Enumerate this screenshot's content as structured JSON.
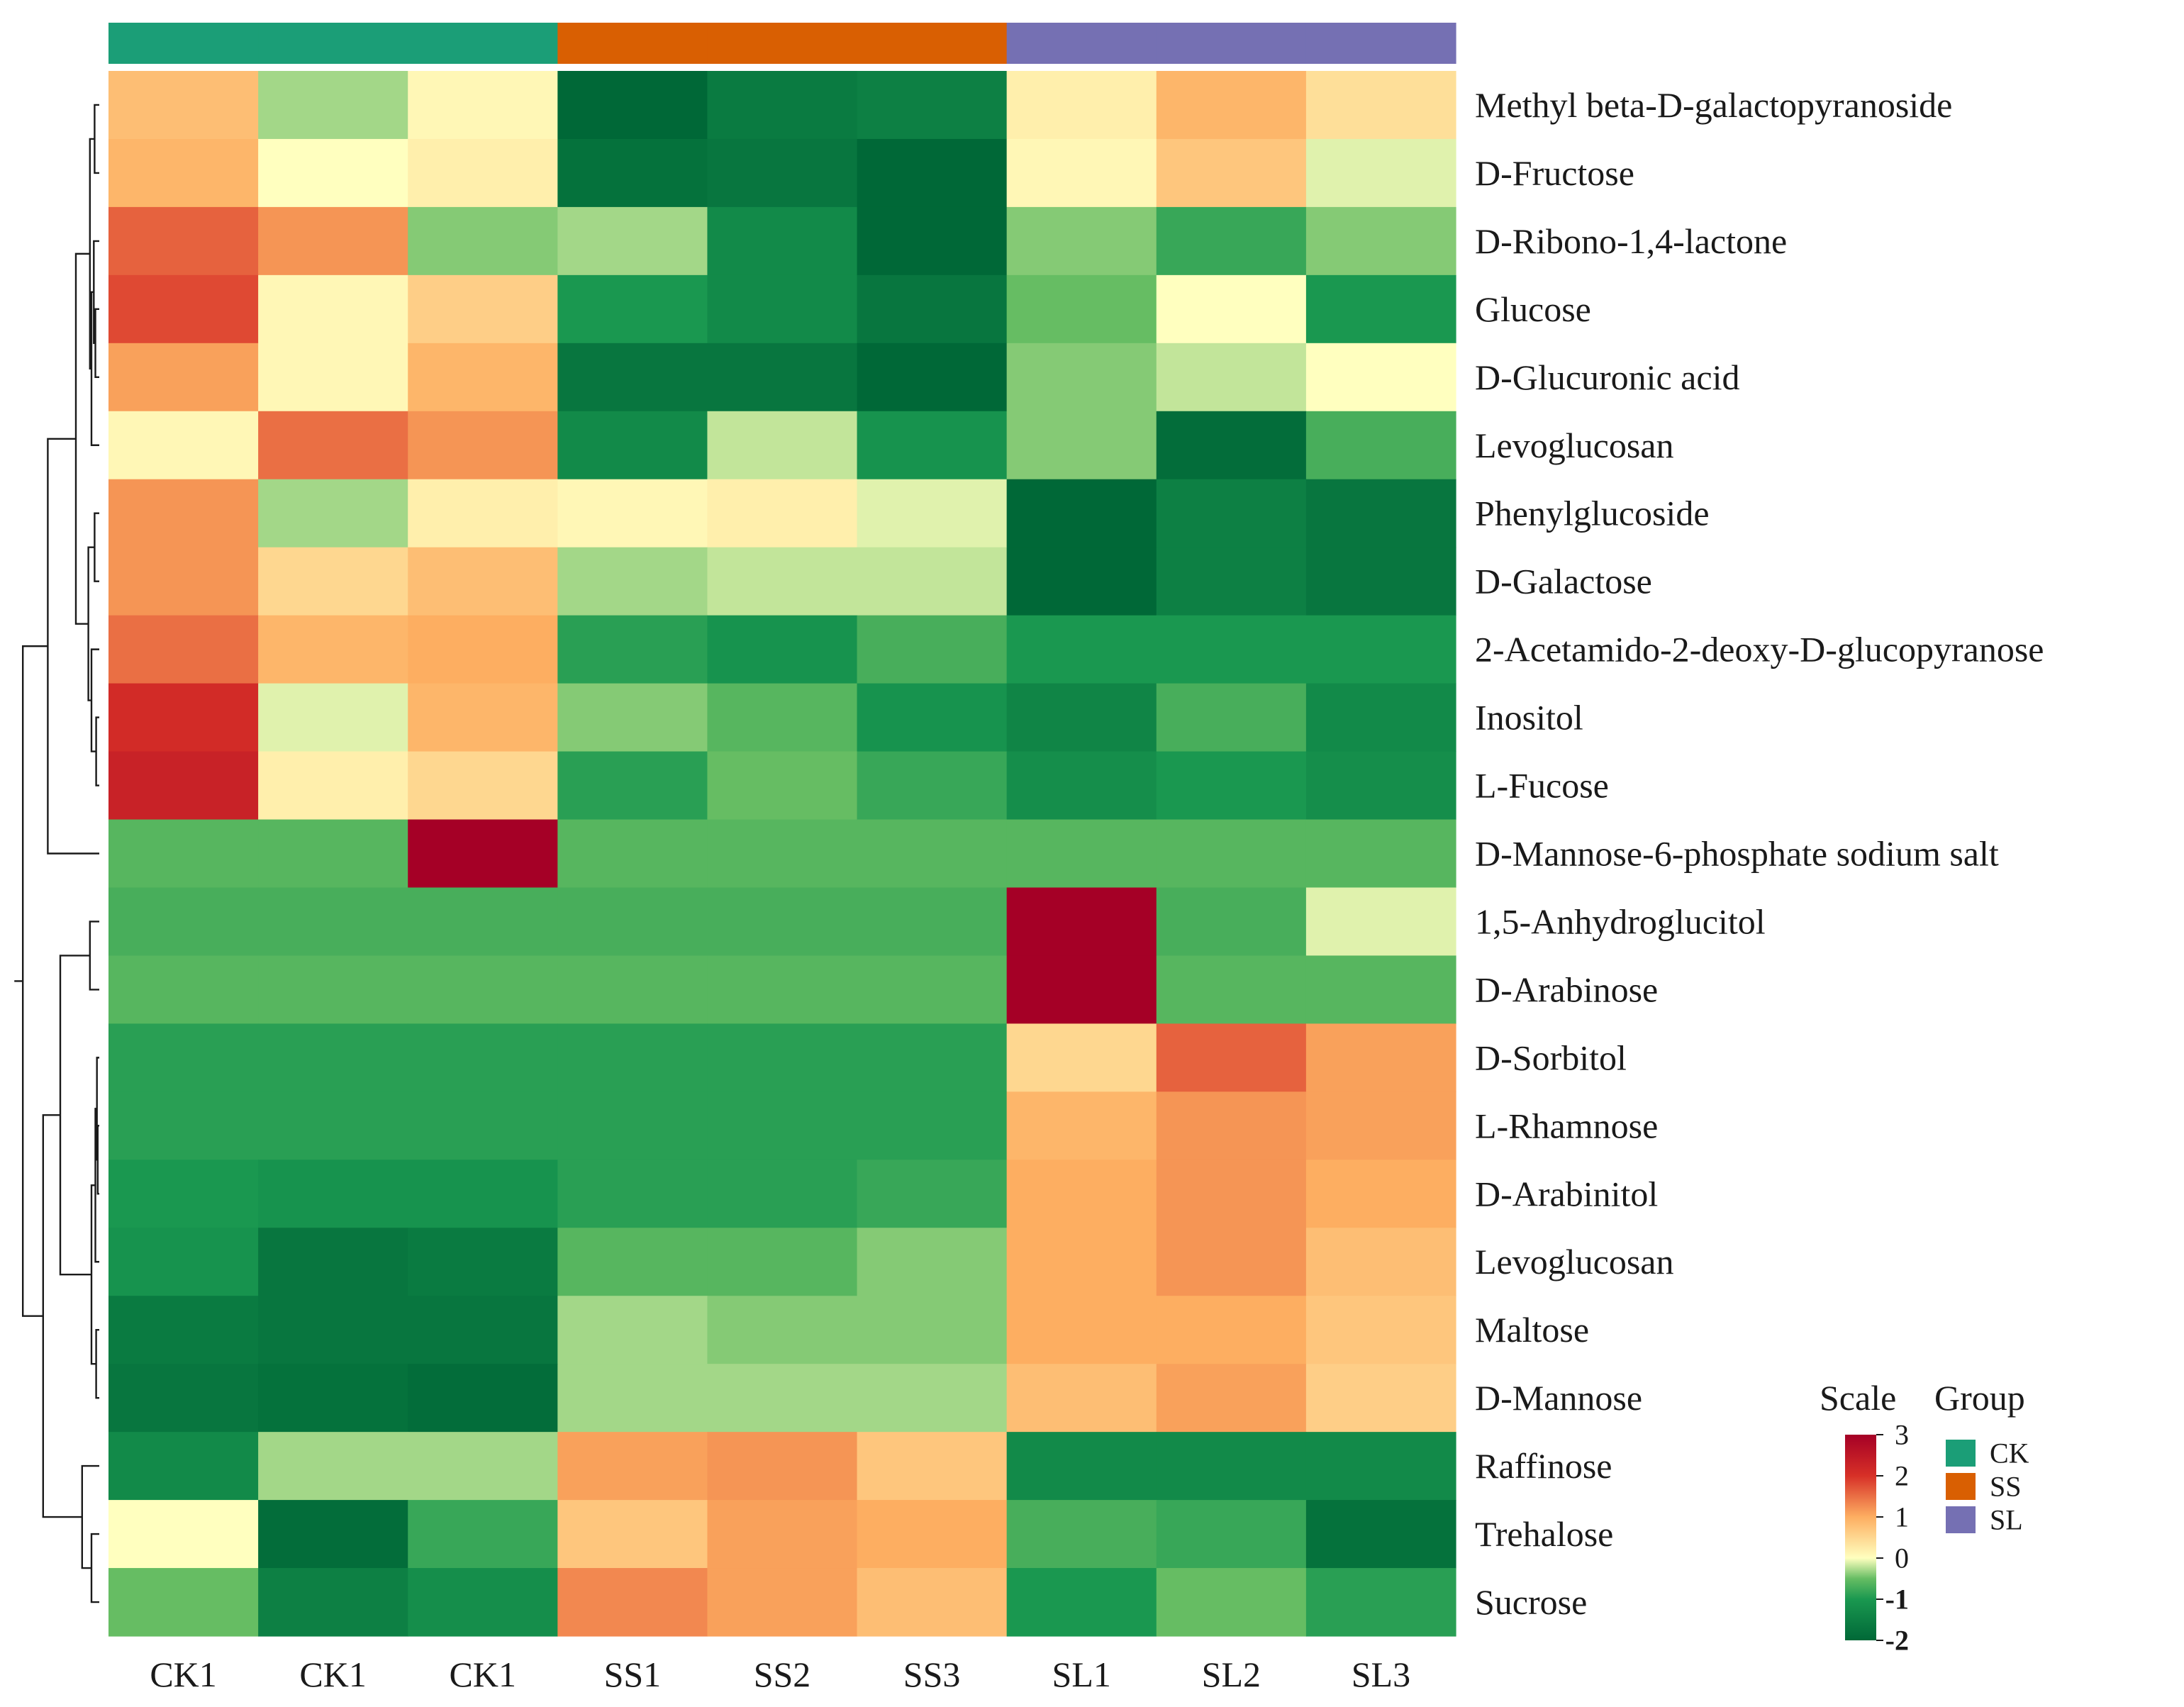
{
  "chart_data": {
    "type": "heatmap",
    "columns": [
      "CK1",
      "CK1",
      "CK1",
      "SS1",
      "SS2",
      "SS3",
      "SL1",
      "SL2",
      "SL3"
    ],
    "column_groups": [
      "CK",
      "CK",
      "CK",
      "SS",
      "SS",
      "SS",
      "SL",
      "SL",
      "SL"
    ],
    "rows": [
      "Methyl beta-D-galactopyranoside",
      "D-Fructose",
      "D-Ribono-1,4-lactone",
      "Glucose",
      "D-Glucuronic acid",
      "Levoglucosan",
      "Phenylglucoside",
      "D-Galactose",
      "2-Acetamido-2-deoxy-D-glucopyranose",
      "Inositol",
      "L-Fucose",
      "D-Mannose-6-phosphate sodium salt",
      "1,5-Anhydroglucitol",
      "D-Arabinose",
      "D-Sorbitol",
      "L-Rhamnose",
      "D-Arabinitol",
      "Levoglucosan",
      "Maltose",
      "D-Mannose",
      "Raffinose",
      "Trehalose",
      "Sucrose"
    ],
    "values": [
      [
        0.8,
        -0.3,
        0.1,
        -2.0,
        -1.6,
        -1.5,
        0.2,
        0.9,
        0.4
      ],
      [
        0.9,
        0.0,
        0.2,
        -1.8,
        -1.7,
        -2.0,
        0.1,
        0.7,
        -0.1
      ],
      [
        1.6,
        1.2,
        -0.4,
        -0.3,
        -1.3,
        -2.1,
        -0.4,
        -0.8,
        -0.4
      ],
      [
        1.8,
        0.1,
        0.6,
        -1.0,
        -1.3,
        -1.7,
        -0.5,
        0.0,
        -1.0
      ],
      [
        1.1,
        0.1,
        0.9,
        -1.7,
        -1.7,
        -2.0,
        -0.4,
        -0.2,
        0.0
      ],
      [
        0.1,
        1.5,
        1.2,
        -1.3,
        -0.2,
        -1.1,
        -0.4,
        -1.9,
        -0.7
      ],
      [
        1.2,
        -0.3,
        0.2,
        0.1,
        0.2,
        -0.1,
        -2.1,
        -1.5,
        -1.7
      ],
      [
        1.2,
        0.5,
        0.8,
        -0.3,
        -0.2,
        -0.2,
        -2.0,
        -1.5,
        -1.7
      ],
      [
        1.5,
        0.9,
        1.0,
        -0.9,
        -1.1,
        -0.7,
        -1.0,
        -1.0,
        -1.0
      ],
      [
        2.1,
        -0.1,
        0.9,
        -0.4,
        -0.6,
        -1.1,
        -1.4,
        -0.7,
        -1.3
      ],
      [
        2.3,
        0.2,
        0.5,
        -0.9,
        -0.5,
        -0.8,
        -1.2,
        -1.0,
        -1.2
      ],
      [
        -0.6,
        -0.6,
        3.0,
        -0.6,
        -0.6,
        -0.6,
        -0.6,
        -0.6,
        -0.6
      ],
      [
        -0.7,
        -0.7,
        -0.7,
        -0.7,
        -0.7,
        -0.7,
        3.0,
        -0.7,
        -0.1
      ],
      [
        -0.6,
        -0.6,
        -0.6,
        -0.6,
        -0.6,
        -0.6,
        3.0,
        -0.6,
        -0.6
      ],
      [
        -0.9,
        -0.9,
        -0.9,
        -0.9,
        -0.9,
        -0.9,
        0.5,
        1.6,
        1.1
      ],
      [
        -0.9,
        -0.9,
        -0.9,
        -0.9,
        -0.9,
        -0.9,
        0.9,
        1.2,
        1.1
      ],
      [
        -1.0,
        -1.1,
        -1.1,
        -0.9,
        -0.9,
        -0.8,
        1.0,
        1.2,
        1.0
      ],
      [
        -1.1,
        -1.7,
        -1.6,
        -0.6,
        -0.6,
        -0.4,
        1.0,
        1.2,
        0.8
      ],
      [
        -1.6,
        -1.7,
        -1.7,
        -0.3,
        -0.4,
        -0.4,
        1.0,
        1.0,
        0.7
      ],
      [
        -1.7,
        -1.8,
        -1.9,
        -0.3,
        -0.3,
        -0.3,
        0.8,
        1.1,
        0.6
      ],
      [
        -1.3,
        -0.3,
        -0.3,
        1.1,
        1.2,
        0.7,
        -1.3,
        -1.3,
        -1.3
      ],
      [
        0.0,
        -1.9,
        -0.8,
        0.7,
        1.1,
        1.0,
        -0.7,
        -0.8,
        -1.8
      ],
      [
        -0.5,
        -1.5,
        -1.2,
        1.3,
        1.1,
        0.8,
        -1.0,
        -0.5,
        -0.9
      ]
    ],
    "colorscale": {
      "min": -2,
      "max": 3,
      "stops": [
        {
          "value": -2,
          "color": "#006837"
        },
        {
          "value": -1,
          "color": "#1a9850"
        },
        {
          "value": -0.5,
          "color": "#66bd63"
        },
        {
          "value": 0,
          "color": "#ffffbf"
        },
        {
          "value": 1,
          "color": "#fdae61"
        },
        {
          "value": 2,
          "color": "#d73027"
        },
        {
          "value": 3,
          "color": "#a50026"
        }
      ]
    },
    "legend": {
      "scale_title": "Scale",
      "ticks": [
        {
          "label": "3",
          "value": 3,
          "bold": false
        },
        {
          "label": "2",
          "value": 2,
          "bold": false
        },
        {
          "label": "1",
          "value": 1,
          "bold": false
        },
        {
          "label": "0",
          "value": 0,
          "bold": false
        },
        {
          "label": "-1",
          "value": -1,
          "bold": true
        },
        {
          "label": "-2",
          "value": -2,
          "bold": true
        }
      ],
      "group_title": "Group",
      "groups": [
        {
          "name": "CK",
          "color": "#1b9e77"
        },
        {
          "name": "SS",
          "color": "#d95f02"
        },
        {
          "name": "SL",
          "color": "#7570b3"
        }
      ]
    },
    "grid": false
  }
}
